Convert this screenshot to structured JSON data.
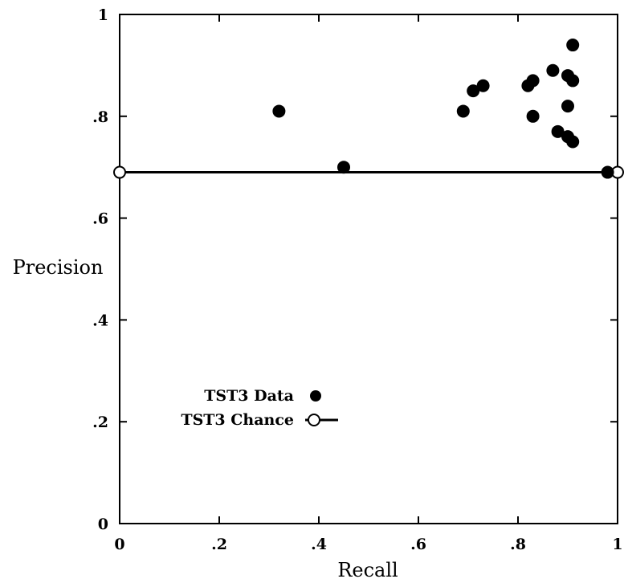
{
  "chart_data": {
    "type": "scatter",
    "xlabel": "Recall",
    "ylabel": "Precision",
    "xlim": [
      0,
      1
    ],
    "ylim": [
      0,
      1
    ],
    "x_ticks": [
      0,
      0.2,
      0.4,
      0.6,
      0.8,
      1
    ],
    "x_tick_labels": [
      "0",
      ".2",
      ".4",
      ".6",
      ".8",
      "1"
    ],
    "y_ticks": [
      0,
      0.2,
      0.4,
      0.6,
      0.8,
      1
    ],
    "y_tick_labels": [
      "0",
      ".2",
      ".4",
      ".6",
      ".8",
      "1"
    ],
    "grid": false,
    "legend_position": "lower-left",
    "series": [
      {
        "name": "TST3 Data",
        "marker": "filled-circle",
        "x": [
          0.32,
          0.45,
          0.69,
          0.71,
          0.73,
          0.82,
          0.83,
          0.83,
          0.87,
          0.88,
          0.9,
          0.9,
          0.9,
          0.91,
          0.91,
          0.91,
          0.98
        ],
        "y": [
          0.81,
          0.7,
          0.81,
          0.85,
          0.86,
          0.86,
          0.87,
          0.8,
          0.89,
          0.77,
          0.88,
          0.82,
          0.76,
          0.94,
          0.87,
          0.75,
          0.69
        ]
      },
      {
        "name": "TST3 Chance",
        "marker": "open-circle",
        "line": true,
        "x": [
          0,
          1
        ],
        "y": [
          0.69,
          0.69
        ]
      }
    ]
  }
}
